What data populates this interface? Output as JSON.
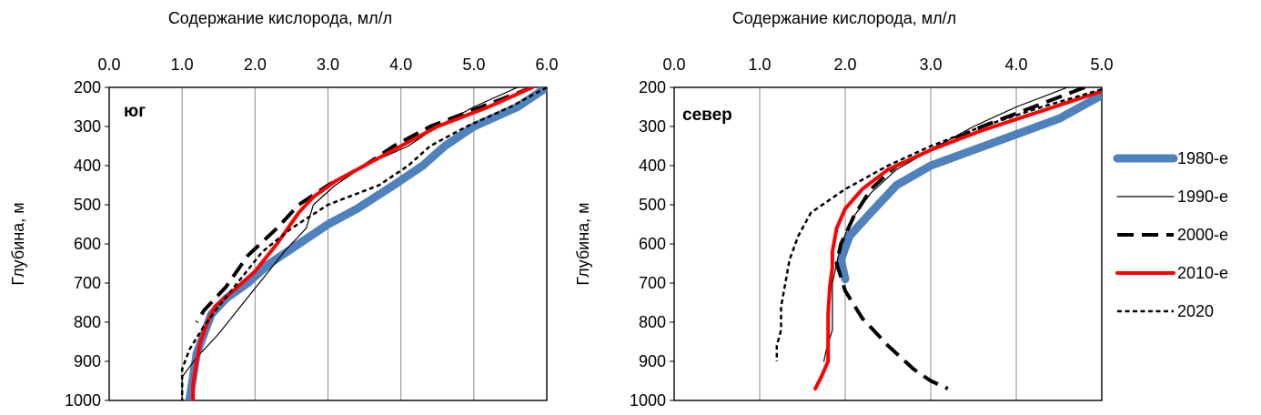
{
  "chart_data": [
    {
      "type": "line",
      "region_label": "юг",
      "title": "Содержание кислорода, мл/л",
      "ylabel": "Глубина, м",
      "xlim": [
        0,
        6
      ],
      "ylim": [
        200,
        1000
      ],
      "y_inverted": true,
      "x_axis_position": "top",
      "xticks": [
        "0.0",
        "1.0",
        "2.0",
        "3.0",
        "4.0",
        "5.0",
        "6.0"
      ],
      "yticks": [
        "200",
        "300",
        "400",
        "500",
        "600",
        "700",
        "800",
        "900",
        "1000"
      ],
      "grid": "vertical",
      "series": [
        {
          "name": "1980-е",
          "points": [
            [
              6.0,
              200
            ],
            [
              5.6,
              250
            ],
            [
              5.0,
              300
            ],
            [
              4.6,
              350
            ],
            [
              4.3,
              400
            ],
            [
              3.9,
              450
            ],
            [
              3.4,
              510
            ],
            [
              3.0,
              550
            ],
            [
              2.6,
              600
            ],
            [
              2.2,
              650
            ],
            [
              1.9,
              700
            ],
            [
              1.6,
              740
            ],
            [
              1.4,
              780
            ],
            [
              1.3,
              830
            ],
            [
              1.2,
              880
            ],
            [
              1.15,
              940
            ],
            [
              1.1,
              1000
            ]
          ]
        },
        {
          "name": "1990-е",
          "points": [
            [
              5.6,
              200
            ],
            [
              5.0,
              250
            ],
            [
              4.5,
              300
            ],
            [
              4.1,
              350
            ],
            [
              3.5,
              400
            ],
            [
              3.1,
              450
            ],
            [
              2.8,
              500
            ],
            [
              2.7,
              560
            ],
            [
              2.4,
              620
            ],
            [
              2.1,
              690
            ],
            [
              1.8,
              760
            ],
            [
              1.5,
              830
            ],
            [
              1.2,
              890
            ],
            [
              1.0,
              940
            ],
            [
              1.0,
              1000
            ]
          ]
        },
        {
          "name": "2000-е",
          "points": [
            [
              5.8,
              200
            ],
            [
              5.1,
              250
            ],
            [
              4.4,
              300
            ],
            [
              3.9,
              350
            ],
            [
              3.5,
              400
            ],
            [
              3.0,
              450
            ],
            [
              2.6,
              500
            ],
            [
              2.3,
              560
            ],
            [
              1.9,
              630
            ],
            [
              1.6,
              710
            ],
            [
              1.3,
              770
            ],
            [
              1.2,
              800
            ]
          ]
        },
        {
          "name": "2010-е",
          "points": [
            [
              5.8,
              200
            ],
            [
              5.2,
              250
            ],
            [
              4.5,
              300
            ],
            [
              4.0,
              350
            ],
            [
              3.5,
              400
            ],
            [
              3.1,
              440
            ],
            [
              2.8,
              480
            ],
            [
              2.6,
              520
            ],
            [
              2.3,
              600
            ],
            [
              2.0,
              670
            ],
            [
              1.7,
              720
            ],
            [
              1.45,
              760
            ],
            [
              1.35,
              800
            ],
            [
              1.25,
              850
            ],
            [
              1.2,
              900
            ],
            [
              1.15,
              960
            ],
            [
              1.15,
              1000
            ]
          ]
        },
        {
          "name": "2020",
          "points": [
            [
              6.0,
              200
            ],
            [
              5.5,
              250
            ],
            [
              4.9,
              300
            ],
            [
              4.4,
              350
            ],
            [
              4.1,
              400
            ],
            [
              3.7,
              450
            ],
            [
              3.0,
              500
            ],
            [
              2.5,
              560
            ],
            [
              2.1,
              620
            ],
            [
              1.8,
              690
            ],
            [
              1.5,
              760
            ],
            [
              1.3,
              810
            ],
            [
              1.1,
              870
            ],
            [
              1.0,
              920
            ],
            [
              1.0,
              1000
            ]
          ]
        }
      ]
    },
    {
      "type": "line",
      "region_label": "север",
      "title": "Содержание кислорода, мл/л",
      "ylabel": "Глубина, м",
      "xlim": [
        0,
        5
      ],
      "ylim": [
        200,
        1000
      ],
      "y_inverted": true,
      "x_axis_position": "top",
      "xticks": [
        "0.0",
        "1.0",
        "2.0",
        "3.0",
        "4.0",
        "5.0"
      ],
      "yticks": [
        "200",
        "300",
        "400",
        "500",
        "600",
        "700",
        "800",
        "900",
        "1000"
      ],
      "grid": "vertical",
      "series": [
        {
          "name": "1980-е",
          "points": [
            [
              5.0,
              220
            ],
            [
              4.5,
              280
            ],
            [
              4.0,
              320
            ],
            [
              3.5,
              360
            ],
            [
              3.0,
              400
            ],
            [
              2.6,
              450
            ],
            [
              2.3,
              520
            ],
            [
              2.05,
              580
            ],
            [
              1.95,
              640
            ],
            [
              2.0,
              690
            ]
          ]
        },
        {
          "name": "1990-е",
          "points": [
            [
              4.6,
              200
            ],
            [
              4.0,
              250
            ],
            [
              3.5,
              300
            ],
            [
              3.0,
              360
            ],
            [
              2.6,
              410
            ],
            [
              2.3,
              470
            ],
            [
              2.1,
              530
            ],
            [
              1.95,
              600
            ],
            [
              1.9,
              650
            ],
            [
              1.85,
              700
            ],
            [
              1.85,
              750
            ],
            [
              1.85,
              820
            ],
            [
              1.78,
              870
            ],
            [
              1.75,
              900
            ]
          ]
        },
        {
          "name": "2000-е",
          "points": [
            [
              4.8,
              200
            ],
            [
              4.2,
              250
            ],
            [
              3.6,
              300
            ],
            [
              3.1,
              350
            ],
            [
              2.6,
              400
            ],
            [
              2.3,
              460
            ],
            [
              2.1,
              530
            ],
            [
              1.95,
              600
            ],
            [
              1.9,
              650
            ],
            [
              2.0,
              720
            ],
            [
              2.2,
              790
            ],
            [
              2.5,
              860
            ],
            [
              2.8,
              920
            ],
            [
              3.0,
              950
            ],
            [
              3.2,
              970
            ]
          ]
        },
        {
          "name": "2010-е",
          "points": [
            [
              5.0,
              210
            ],
            [
              4.3,
              260
            ],
            [
              3.6,
              310
            ],
            [
              3.0,
              360
            ],
            [
              2.5,
              410
            ],
            [
              2.2,
              460
            ],
            [
              2.0,
              510
            ],
            [
              1.9,
              560
            ],
            [
              1.85,
              620
            ],
            [
              1.85,
              660
            ],
            [
              1.82,
              710
            ],
            [
              1.8,
              780
            ],
            [
              1.8,
              850
            ],
            [
              1.8,
              900
            ],
            [
              1.72,
              940
            ],
            [
              1.65,
              970
            ]
          ]
        },
        {
          "name": "2020",
          "points": [
            [
              5.0,
              205
            ],
            [
              4.3,
              250
            ],
            [
              3.6,
              300
            ],
            [
              3.0,
              350
            ],
            [
              2.5,
              400
            ],
            [
              2.0,
              460
            ],
            [
              1.6,
              520
            ],
            [
              1.45,
              580
            ],
            [
              1.35,
              640
            ],
            [
              1.3,
              700
            ],
            [
              1.25,
              760
            ],
            [
              1.25,
              820
            ],
            [
              1.2,
              860
            ],
            [
              1.2,
              900
            ]
          ]
        }
      ]
    }
  ],
  "legend": {
    "placement": "right",
    "items": [
      {
        "label": "1980-е",
        "color": "#4f81bd"
      },
      {
        "label": "1990-е",
        "color": "#000000"
      },
      {
        "label": "2000-е",
        "color": "#000000"
      },
      {
        "label": "2010-е",
        "color": "#ff0000"
      },
      {
        "label": "2020",
        "color": "#000000"
      }
    ]
  },
  "series_colors": {
    "1980-е": "#4f81bd",
    "1990-е": "#000000",
    "2000-е": "#000000",
    "2010-е": "#ff0000",
    "2020": "#000000"
  }
}
